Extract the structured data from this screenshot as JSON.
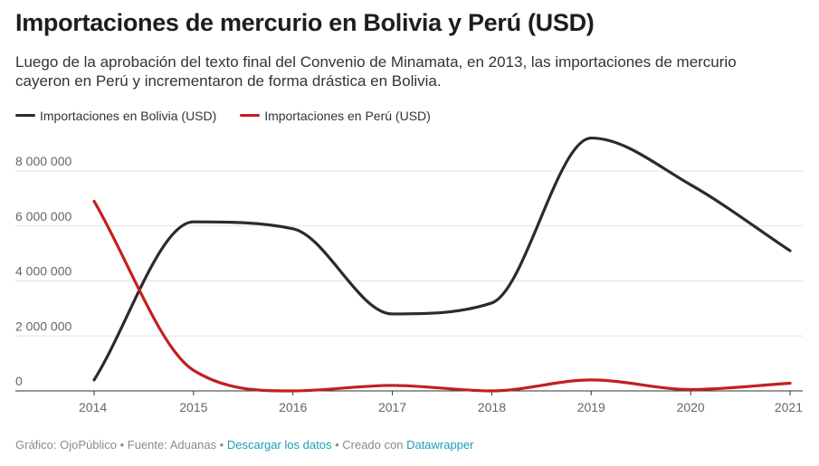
{
  "header": {
    "title": "Importaciones de mercurio en Bolivia y Perú (USD)",
    "subtitle": "Luego de la aprobación del texto final del Convenio de Minamata, en 2013, las importaciones de mercurio cayeron en Perú y incrementaron de forma drástica en Bolivia."
  },
  "footer": {
    "prefix": "Gráfico: OjoPúblico • Fuente: Aduanas • ",
    "download_label": "Descargar los datos",
    "created_label": " • Creado con ",
    "tool_label": "Datawrapper"
  },
  "colors": {
    "bolivia": "#2b2b2b",
    "peru": "#c0201f",
    "grid": "#e2e2e2",
    "axis": "#333333"
  },
  "chart_data": {
    "type": "line",
    "title": "Importaciones de mercurio en Bolivia y Perú (USD)",
    "x": [
      "2014",
      "2015",
      "2016",
      "2017",
      "2018",
      "2019",
      "2020",
      "2021"
    ],
    "yticks": [
      0,
      2000000,
      4000000,
      6000000,
      8000000
    ],
    "ytick_labels": [
      "0",
      "2 000 000",
      "4 000 000",
      "6 000 000",
      "8 000 000"
    ],
    "ylim": [
      0,
      8000000
    ],
    "xlabel": "",
    "ylabel": "",
    "legend": "top-left",
    "series": [
      {
        "name": "Importaciones en Bolivia (USD)",
        "color": "#2b2b2b",
        "values": [
          400000,
          6150000,
          5900000,
          2800000,
          3200000,
          9200000,
          7500000,
          5100000
        ]
      },
      {
        "name": "Importaciones en Perú (USD)",
        "color": "#c0201f",
        "values": [
          6900000,
          750000,
          0,
          200000,
          0,
          400000,
          50000,
          280000
        ]
      }
    ]
  }
}
